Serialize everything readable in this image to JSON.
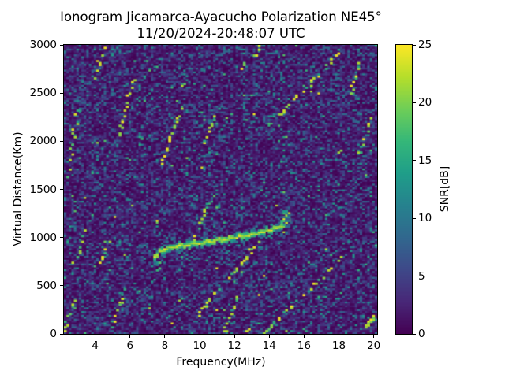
{
  "chart_data": {
    "type": "heatmap",
    "title": "Ionogram Jicamarca-Ayacucho Polarization NE45°",
    "subtitle": "11/20/2024-20:48:07 UTC",
    "xlabel": "Frequency(MHz)",
    "ylabel": "Virtual Distance(Km)",
    "colorbar_label": "SNR[dB]",
    "colormap": "viridis",
    "xlim": [
      2.2,
      20.2
    ],
    "ylim": [
      0,
      3000
    ],
    "clim": [
      0,
      25
    ],
    "x_ticks": [
      4,
      6,
      8,
      10,
      12,
      14,
      16,
      18,
      20
    ],
    "y_ticks": [
      0,
      500,
      1000,
      1500,
      2000,
      2500,
      3000
    ],
    "colorbar_ticks": [
      0,
      5,
      10,
      15,
      20,
      25
    ],
    "grid_bins": {
      "nx": 126,
      "ny": 152
    },
    "noise_db_distribution": [
      {
        "range": [
          0,
          2
        ],
        "weight": 0.52
      },
      {
        "range": [
          2,
          5
        ],
        "weight": 0.28
      },
      {
        "range": [
          5,
          9
        ],
        "weight": 0.14
      },
      {
        "range": [
          9,
          13
        ],
        "weight": 0.05
      },
      {
        "range": [
          13,
          18
        ],
        "weight": 0.008
      },
      {
        "range": [
          18,
          25
        ],
        "weight": 0.002
      }
    ],
    "echo_trace": {
      "description": "F-region ionospheric echo trace",
      "snr_db_core": 24,
      "points_freq_km": [
        [
          7.45,
          790
        ],
        [
          7.7,
          855
        ],
        [
          8.0,
          878
        ],
        [
          8.5,
          898
        ],
        [
          9.0,
          913
        ],
        [
          9.5,
          927
        ],
        [
          10.0,
          941
        ],
        [
          10.5,
          955
        ],
        [
          11.0,
          969
        ],
        [
          11.5,
          984
        ],
        [
          12.0,
          999
        ],
        [
          12.5,
          1014
        ],
        [
          13.0,
          1031
        ],
        [
          13.5,
          1052
        ],
        [
          14.0,
          1078
        ],
        [
          14.3,
          1094
        ],
        [
          14.6,
          1114
        ],
        [
          14.85,
          1136
        ],
        [
          15.05,
          1165
        ]
      ],
      "cusp": {
        "freq_range": [
          14.75,
          15.15
        ],
        "km_range": [
          1140,
          1295
        ]
      },
      "leading_tail": {
        "freq_range": [
          7.4,
          7.75
        ],
        "km_range": [
          640,
          810
        ]
      }
    },
    "interference_streaks": [
      {
        "from": [
          2.43,
          1627
        ],
        "to": [
          3.02,
          2338
        ]
      },
      {
        "from": [
          3.92,
          2665
        ],
        "to": [
          4.6,
          2976
        ]
      },
      {
        "from": [
          2.83,
          744
        ],
        "to": [
          3.56,
          1153
        ]
      },
      {
        "from": [
          4.88,
          25
        ],
        "to": [
          5.74,
          466
        ]
      },
      {
        "from": [
          5.33,
          2036
        ],
        "to": [
          6.24,
          2665
        ]
      },
      {
        "from": [
          7.82,
          1774
        ],
        "to": [
          8.91,
          2322
        ]
      },
      {
        "from": [
          9.73,
          981
        ],
        "to": [
          10.45,
          1357
        ]
      },
      {
        "from": [
          10.27,
          1978
        ],
        "to": [
          11.09,
          2338
        ]
      },
      {
        "from": [
          11.36,
          8
        ],
        "to": [
          12.22,
          392
        ]
      },
      {
        "from": [
          14.4,
          2240
        ],
        "to": [
          18.12,
          2943
        ]
      },
      {
        "from": [
          12.27,
          2747
        ],
        "to": [
          13.54,
          2976
        ]
      },
      {
        "from": [
          11.68,
          564
        ],
        "to": [
          13.4,
          965
        ]
      },
      {
        "from": [
          13.76,
          25
        ],
        "to": [
          18.16,
          785
        ]
      },
      {
        "from": [
          18.66,
          2485
        ],
        "to": [
          19.39,
          2894
        ]
      },
      {
        "from": [
          19.16,
          1872
        ],
        "to": [
          19.84,
          2240
        ]
      },
      {
        "from": [
          2.25,
          33
        ],
        "to": [
          2.83,
          376
        ]
      },
      {
        "from": [
          9.95,
          196
        ],
        "to": [
          11.22,
          507
        ]
      },
      {
        "from": [
          4.24,
          687
        ],
        "to": [
          4.74,
          957
        ]
      }
    ],
    "hot_spots": [
      {
        "freq": 19.55,
        "km": 95,
        "size": "large"
      },
      {
        "freq": 18.05,
        "km": 1890,
        "size": "small"
      },
      {
        "freq": 12.7,
        "km": 20,
        "size": "small"
      },
      {
        "freq": 13.7,
        "km": 15,
        "size": "small"
      },
      {
        "freq": 9.05,
        "km": 2570,
        "size": "small"
      }
    ]
  },
  "colors": {
    "figure_background": "#ffffff",
    "text": "#000000",
    "viridis_stops": [
      "#440154",
      "#482878",
      "#3e4989",
      "#31688e",
      "#26828e",
      "#1f9e89",
      "#35b779",
      "#6ece58",
      "#b5de2b",
      "#fde725"
    ]
  }
}
